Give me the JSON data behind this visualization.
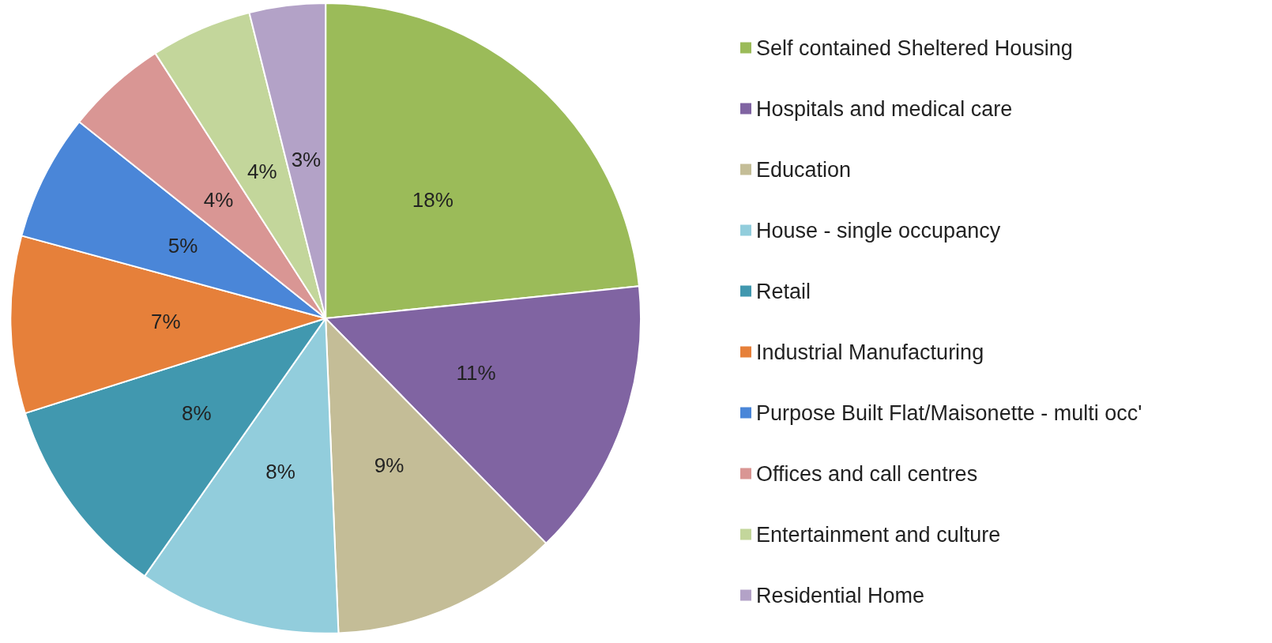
{
  "chart_data": {
    "type": "pie",
    "categories": [
      "Self contained Sheltered Housing",
      "Hospitals and medical care",
      "Education",
      "House - single occupancy",
      "Retail",
      "Industrial Manufacturing",
      "Purpose Built Flat/Maisonette - multi occ'",
      "Offices and call centres",
      "Entertainment and culture",
      "Residential Home"
    ],
    "values": [
      18,
      11,
      9,
      8,
      8,
      7,
      5,
      4,
      4,
      3
    ],
    "value_labels": [
      "18%",
      "11%",
      "9%",
      "8%",
      "8%",
      "7%",
      "5%",
      "4%",
      "4%",
      "3%"
    ],
    "colors": [
      "#9bbb59",
      "#8064a2",
      "#c4bd97",
      "#92cddc",
      "#4198af",
      "#e6803a",
      "#4a86d8",
      "#d99694",
      "#c3d69b",
      "#b3a2c7"
    ],
    "legend": "right"
  }
}
